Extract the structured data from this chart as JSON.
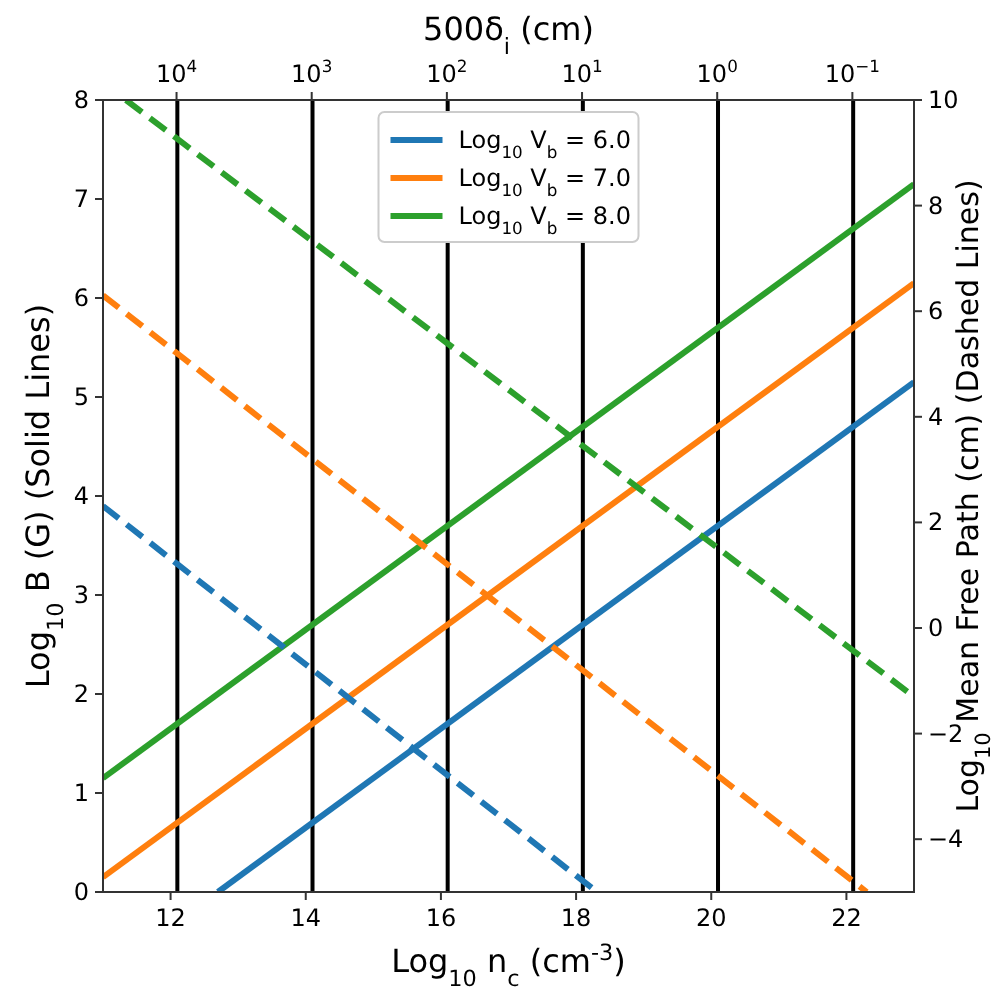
{
  "chart_data": {
    "type": "line",
    "xlabel": "Log$_{10}$ n$_{c}$ (cm$^{-3}$)",
    "ylabel": "Log$_{10}$ B (G) (Solid Lines)",
    "y2label": "Log$_{10}$ Mean Free Path (cm) (Dashed Lines)",
    "x2label": "500δ$_{i}$ (cm)",
    "xlim": [
      11,
      23
    ],
    "xticks": [
      12,
      14,
      16,
      18,
      20,
      22
    ],
    "ylim": [
      0,
      8
    ],
    "yticks": [
      0,
      1,
      2,
      3,
      4,
      5,
      6,
      7,
      8
    ],
    "y2lim": [
      -5,
      10
    ],
    "y2ticks": [
      -4,
      -2,
      0,
      2,
      4,
      6,
      8,
      10
    ],
    "x2lim": [
      35000,
      0.035
    ],
    "log": "x2",
    "x2ticks": [
      {
        "value": 10000,
        "label": "10$^{4}$"
      },
      {
        "value": 1000,
        "label": "10$^{3}$"
      },
      {
        "value": 100,
        "label": "10$^{2}$"
      },
      {
        "value": 10,
        "label": "10$^{1}$"
      },
      {
        "value": 1,
        "label": "10$^{0}$"
      },
      {
        "value": 0.1,
        "label": "10$^{−1}$"
      }
    ],
    "ref_lines": [
      {
        "axis": "x",
        "value": 12.1,
        "color": "#000000"
      },
      {
        "axis": "x",
        "value": 14.1,
        "color": "#000000"
      },
      {
        "axis": "x",
        "value": 16.1,
        "color": "#000000"
      },
      {
        "axis": "x",
        "value": 18.1,
        "color": "#000000"
      },
      {
        "axis": "x",
        "value": 20.1,
        "color": "#000000"
      },
      {
        "axis": "x",
        "value": 22.1,
        "color": "#000000"
      }
    ],
    "legend": "top",
    "grid": false,
    "series": [
      {
        "name": "Log$_{10}$ V$_{b}$ = 6.0",
        "color": "#1f77b4",
        "x": [
          12.7,
          23
        ],
        "values": [
          0,
          5.15
        ],
        "line_style": "solid"
      },
      {
        "name": "Log$_{10}$ V$_{b}$ = 7.0",
        "color": "#ff7f0e",
        "x": [
          11,
          23
        ],
        "values": [
          0.15,
          6.15
        ],
        "line_style": "solid"
      },
      {
        "name": "Log$_{10}$ V$_{b}$ = 8.0",
        "color": "#2ca02c",
        "x": [
          11,
          23
        ],
        "values": [
          1.15,
          7.15
        ],
        "line_style": "solid"
      },
      {
        "color": "#1f77b4",
        "x": [
          11,
          18.31
        ],
        "values": [
          2.31,
          -5
        ],
        "axis": "y2",
        "line_style": "dashed"
      },
      {
        "color": "#ff7f0e",
        "x": [
          11,
          22.3
        ],
        "values": [
          6.3,
          -5
        ],
        "axis": "y2",
        "line_style": "dashed"
      },
      {
        "color": "#2ca02c",
        "x": [
          11.34,
          23
        ],
        "values": [
          10,
          -1.3
        ],
        "axis": "y2",
        "line_style": "dashed"
      }
    ]
  }
}
